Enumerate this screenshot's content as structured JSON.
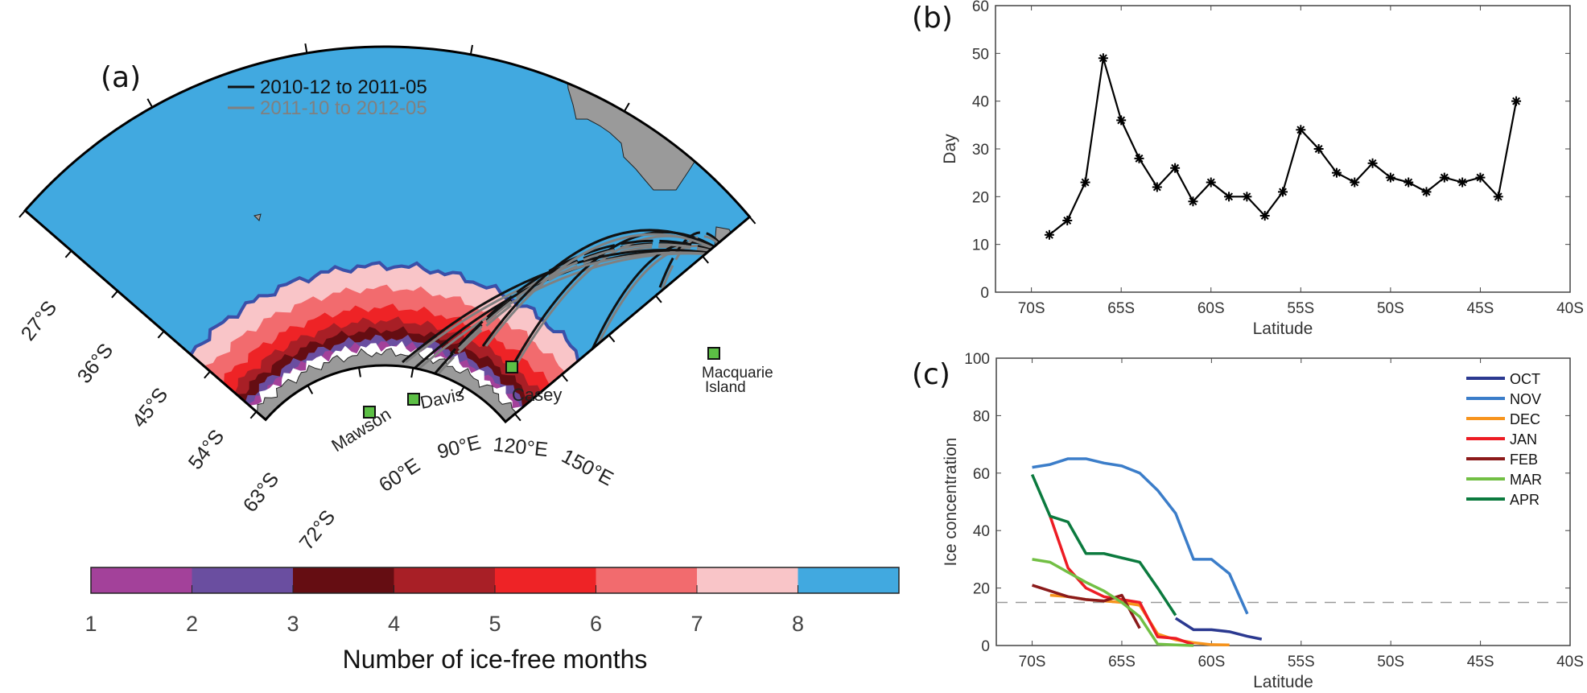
{
  "figure": {
    "panel_a": {
      "label": "(a)",
      "legend": [
        {
          "label": "2010-12 to 2011-05",
          "color": "#111111"
        },
        {
          "label": "2011-10 to 2012-05",
          "color": "#808080"
        }
      ],
      "stations": [
        {
          "name": "Mawson"
        },
        {
          "name": "Davis"
        },
        {
          "name": "Casey"
        },
        {
          "name": "Macquarie",
          "name2": "Island"
        }
      ],
      "station_marker_color": "#5cbf45",
      "latitude_labels": [
        "27°S",
        "36°S",
        "45°S",
        "54°S",
        "63°S",
        "72°S"
      ],
      "longitude_labels": [
        "60°E",
        "90°E",
        "120°E",
        "150°E"
      ],
      "ocean_color": "#41a9e0",
      "land_color": "#9a9a9a",
      "colorbar": {
        "title": "Number of ice-free months",
        "ticks": [
          "1",
          "2",
          "3",
          "4",
          "5",
          "6",
          "7",
          "8"
        ],
        "colors": [
          "#a3419a",
          "#6a4ea0",
          "#650d12",
          "#a81f26",
          "#ee2326",
          "#f26b6e",
          "#f9c5c8",
          "#41a9e0"
        ]
      }
    },
    "panel_b": {
      "label": "(b)"
    },
    "panel_c": {
      "label": "(c)"
    }
  },
  "chart_data": [
    {
      "type": "line",
      "panel": "(b)",
      "title": "",
      "xlabel": "Latitude",
      "ylabel": "Day",
      "xlim": [
        -72,
        -40
      ],
      "ylim": [
        0,
        60
      ],
      "xticks": [
        -70,
        -65,
        -60,
        -55,
        -50,
        -45,
        -40
      ],
      "xtick_labels": [
        "70S",
        "65S",
        "60S",
        "55S",
        "50S",
        "45S",
        "40S"
      ],
      "yticks": [
        0,
        10,
        20,
        30,
        40,
        50,
        60
      ],
      "ytick_labels": [
        "0",
        "10",
        "20",
        "30",
        "40",
        "50",
        "60"
      ],
      "grid": false,
      "marker": "asterisk",
      "series": [
        {
          "name": "Day",
          "color": "#000000",
          "x": [
            -69,
            -68,
            -67,
            -66,
            -65,
            -64,
            -63,
            -62,
            -61,
            -60,
            -59,
            -58,
            -57,
            -56,
            -55,
            -54,
            -53,
            -52,
            -51,
            -50,
            -49,
            -48,
            -47,
            -46,
            -45,
            -44,
            -43
          ],
          "y": [
            12,
            15,
            23,
            49,
            36,
            28,
            22,
            26,
            19,
            23,
            20,
            20,
            16,
            21,
            34,
            30,
            25,
            23,
            27,
            24,
            23,
            21,
            24,
            23,
            24,
            20,
            40
          ]
        }
      ]
    },
    {
      "type": "line",
      "panel": "(c)",
      "title": "",
      "xlabel": "Latitude",
      "ylabel": "Ice concentration",
      "xlim": [
        -72,
        -40
      ],
      "ylim": [
        0,
        100
      ],
      "xticks": [
        -70,
        -65,
        -60,
        -55,
        -50,
        -45,
        -40
      ],
      "xtick_labels": [
        "70S",
        "65S",
        "60S",
        "55S",
        "50S",
        "45S",
        "40S"
      ],
      "yticks": [
        0,
        20,
        40,
        60,
        80,
        100
      ],
      "ytick_labels": [
        "0",
        "20",
        "40",
        "60",
        "80",
        "100"
      ],
      "grid": false,
      "legend_position": "top-right",
      "reference_line": {
        "y": 15,
        "style": "dashed",
        "color": "#999999"
      },
      "series": [
        {
          "name": "OCT",
          "color": "#2b3990",
          "x": [
            -62,
            -61,
            -60,
            -59,
            -58,
            -57.2
          ],
          "y": [
            9.5,
            5.5,
            5.5,
            4.8,
            3.2,
            2.2
          ]
        },
        {
          "name": "NOV",
          "color": "#3b7dc9",
          "x": [
            -70,
            -69,
            -68,
            -67,
            -66,
            -65,
            -64,
            -63,
            -62,
            -61,
            -60,
            -59,
            -58
          ],
          "y": [
            62,
            63,
            65,
            65,
            63.5,
            62.5,
            60,
            54,
            46,
            30,
            30,
            25,
            11
          ]
        },
        {
          "name": "DEC",
          "color": "#f7941d",
          "x": [
            -69,
            -68,
            -67,
            -66,
            -65,
            -64,
            -63,
            -62,
            -61,
            -60,
            -59
          ],
          "y": [
            17.5,
            17,
            16,
            15.5,
            15,
            14,
            4,
            2,
            1,
            0.3,
            0.2
          ]
        },
        {
          "name": "JAN",
          "color": "#ed1c24",
          "x": [
            -69,
            -68,
            -67,
            -66,
            -65,
            -64,
            -63,
            -62,
            -61
          ],
          "y": [
            45,
            27,
            20,
            17,
            16,
            15,
            3,
            2.5,
            0.3
          ]
        },
        {
          "name": "FEB",
          "color": "#8b1a1a",
          "x": [
            -70,
            -69,
            -68,
            -67,
            -66,
            -65,
            -64
          ],
          "y": [
            21,
            19,
            17,
            16,
            15.5,
            17.5,
            6
          ]
        },
        {
          "name": "MAR",
          "color": "#72bf44",
          "x": [
            -70,
            -69,
            -68,
            -67,
            -66,
            -65,
            -64,
            -63,
            -62,
            -61
          ],
          "y": [
            30,
            29,
            25.5,
            22,
            19,
            15,
            10,
            0.5,
            0.2,
            0
          ]
        },
        {
          "name": "APR",
          "color": "#0b7a3e",
          "x": [
            -70,
            -69,
            -68,
            -67,
            -66,
            -65,
            -64,
            -63,
            -62
          ],
          "y": [
            59.5,
            45,
            43,
            32,
            32,
            30.5,
            29,
            20,
            10.5
          ]
        }
      ]
    }
  ]
}
